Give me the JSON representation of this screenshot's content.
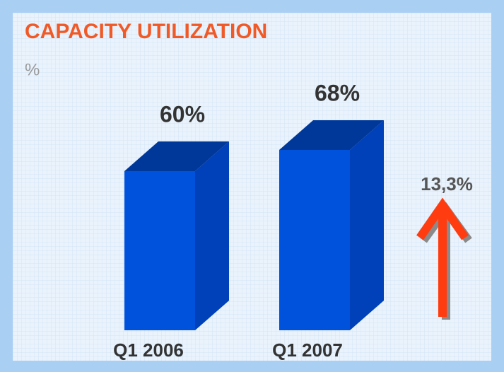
{
  "chart_data": {
    "type": "bar3d",
    "title": "CAPACITY UTILIZATION",
    "subtitle": "%",
    "categories": [
      "Q1 2006",
      "Q1 2007"
    ],
    "values": [
      60,
      68
    ],
    "value_labels": [
      "60%",
      "68%"
    ],
    "annotation": "13,3%",
    "color": "#0052dc"
  }
}
